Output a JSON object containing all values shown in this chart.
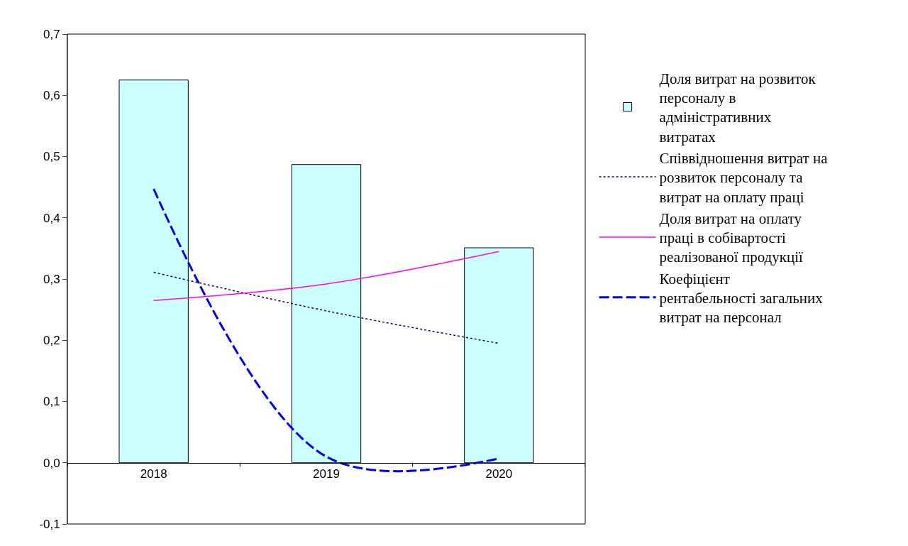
{
  "chart_data": {
    "type": "bar",
    "categories": [
      "2018",
      "2019",
      "2020"
    ],
    "series": [
      {
        "name": "Доля витрат на розвиток персоналу в адміністративних витратах",
        "color": "#ccffff",
        "values": [
          0.625,
          0.487,
          0.351
        ]
      },
      {
        "name": "Співвідношення витрат на розвиток персоналу та витрат на оплату праці",
        "type": "line",
        "line_style": "dotted",
        "color": "#000080",
        "values": [
          0.311,
          0.248,
          0.195
        ]
      },
      {
        "name": "Доля витрат на оплату праці в собівартості реалізованої продукції",
        "type": "line",
        "line_style": "solid",
        "color": "#ff00ff",
        "values": [
          0.265,
          0.292,
          0.345
        ]
      },
      {
        "name": "Коефіцієнт рентабельності загальних витрат на персонал",
        "type": "line",
        "line_style": "dashed",
        "color": "#0000ff",
        "values": [
          0.447,
          0.01,
          0.007
        ]
      }
    ],
    "ylim": [
      -0.1,
      0.7
    ],
    "yticks": [
      {
        "value": -0.1,
        "label": "-0,1"
      },
      {
        "value": 0,
        "label": "0,0"
      },
      {
        "value": 0.1,
        "label": "0,1"
      },
      {
        "value": 0.2,
        "label": "0,2"
      },
      {
        "value": 0.3,
        "label": "0,3"
      },
      {
        "value": 0.4,
        "label": "0,4"
      },
      {
        "value": 0.5,
        "label": "0,5"
      },
      {
        "value": 0.6,
        "label": "0,6"
      },
      {
        "value": 0.7,
        "label": "0,7"
      }
    ],
    "legend": "right",
    "marker": "none"
  }
}
